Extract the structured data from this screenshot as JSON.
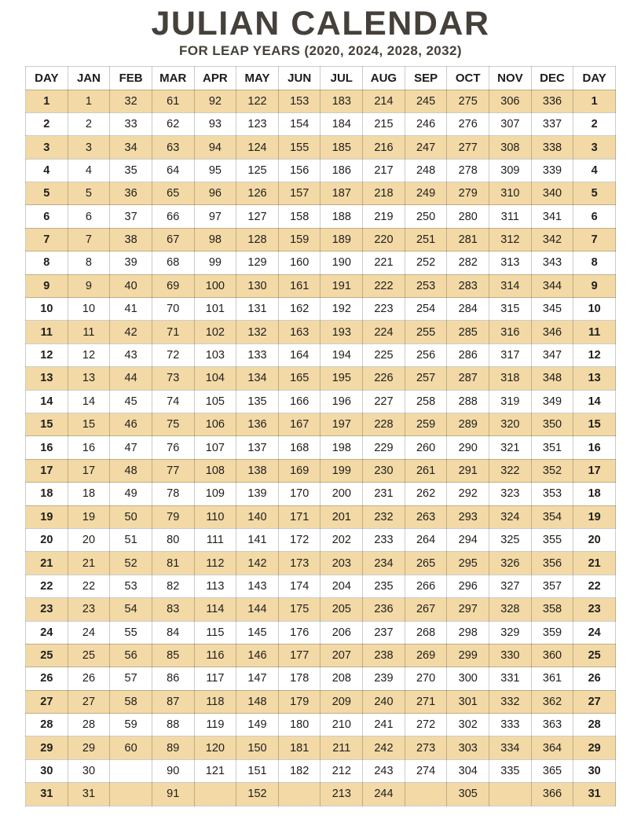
{
  "title": "JULIAN CALENDAR",
  "subtitle": "FOR LEAP YEARS (2020, 2024, 2028, 2032)",
  "colors": {
    "title_text": "#45403a",
    "stripe_row": "#f2d9a6",
    "grid_line": "#cccccc",
    "table_text": "#22201d"
  },
  "table": {
    "columns": [
      "DAY",
      "JAN",
      "FEB",
      "MAR",
      "APR",
      "MAY",
      "JUN",
      "JUL",
      "AUG",
      "SEP",
      "OCT",
      "NOV",
      "DEC",
      "DAY"
    ],
    "rows": [
      {
        "day": 1,
        "values": [
          1,
          32,
          61,
          92,
          122,
          153,
          183,
          214,
          245,
          275,
          306,
          336
        ]
      },
      {
        "day": 2,
        "values": [
          2,
          33,
          62,
          93,
          123,
          154,
          184,
          215,
          246,
          276,
          307,
          337
        ]
      },
      {
        "day": 3,
        "values": [
          3,
          34,
          63,
          94,
          124,
          155,
          185,
          216,
          247,
          277,
          308,
          338
        ]
      },
      {
        "day": 4,
        "values": [
          4,
          35,
          64,
          95,
          125,
          156,
          186,
          217,
          248,
          278,
          309,
          339
        ]
      },
      {
        "day": 5,
        "values": [
          5,
          36,
          65,
          96,
          126,
          157,
          187,
          218,
          249,
          279,
          310,
          340
        ]
      },
      {
        "day": 6,
        "values": [
          6,
          37,
          66,
          97,
          127,
          158,
          188,
          219,
          250,
          280,
          311,
          341
        ]
      },
      {
        "day": 7,
        "values": [
          7,
          38,
          67,
          98,
          128,
          159,
          189,
          220,
          251,
          281,
          312,
          342
        ]
      },
      {
        "day": 8,
        "values": [
          8,
          39,
          68,
          99,
          129,
          160,
          190,
          221,
          252,
          282,
          313,
          343
        ]
      },
      {
        "day": 9,
        "values": [
          9,
          40,
          69,
          100,
          130,
          161,
          191,
          222,
          253,
          283,
          314,
          344
        ]
      },
      {
        "day": 10,
        "values": [
          10,
          41,
          70,
          101,
          131,
          162,
          192,
          223,
          254,
          284,
          315,
          345
        ]
      },
      {
        "day": 11,
        "values": [
          11,
          42,
          71,
          102,
          132,
          163,
          193,
          224,
          255,
          285,
          316,
          346
        ]
      },
      {
        "day": 12,
        "values": [
          12,
          43,
          72,
          103,
          133,
          164,
          194,
          225,
          256,
          286,
          317,
          347
        ]
      },
      {
        "day": 13,
        "values": [
          13,
          44,
          73,
          104,
          134,
          165,
          195,
          226,
          257,
          287,
          318,
          348
        ]
      },
      {
        "day": 14,
        "values": [
          14,
          45,
          74,
          105,
          135,
          166,
          196,
          227,
          258,
          288,
          319,
          349
        ]
      },
      {
        "day": 15,
        "values": [
          15,
          46,
          75,
          106,
          136,
          167,
          197,
          228,
          259,
          289,
          320,
          350
        ]
      },
      {
        "day": 16,
        "values": [
          16,
          47,
          76,
          107,
          137,
          168,
          198,
          229,
          260,
          290,
          321,
          351
        ]
      },
      {
        "day": 17,
        "values": [
          17,
          48,
          77,
          108,
          138,
          169,
          199,
          230,
          261,
          291,
          322,
          352
        ]
      },
      {
        "day": 18,
        "values": [
          18,
          49,
          78,
          109,
          139,
          170,
          200,
          231,
          262,
          292,
          323,
          353
        ]
      },
      {
        "day": 19,
        "values": [
          19,
          50,
          79,
          110,
          140,
          171,
          201,
          232,
          263,
          293,
          324,
          354
        ]
      },
      {
        "day": 20,
        "values": [
          20,
          51,
          80,
          111,
          141,
          172,
          202,
          233,
          264,
          294,
          325,
          355
        ]
      },
      {
        "day": 21,
        "values": [
          21,
          52,
          81,
          112,
          142,
          173,
          203,
          234,
          265,
          295,
          326,
          356
        ]
      },
      {
        "day": 22,
        "values": [
          22,
          53,
          82,
          113,
          143,
          174,
          204,
          235,
          266,
          296,
          327,
          357
        ]
      },
      {
        "day": 23,
        "values": [
          23,
          54,
          83,
          114,
          144,
          175,
          205,
          236,
          267,
          297,
          328,
          358
        ]
      },
      {
        "day": 24,
        "values": [
          24,
          55,
          84,
          115,
          145,
          176,
          206,
          237,
          268,
          298,
          329,
          359
        ]
      },
      {
        "day": 25,
        "values": [
          25,
          56,
          85,
          116,
          146,
          177,
          207,
          238,
          269,
          299,
          330,
          360
        ]
      },
      {
        "day": 26,
        "values": [
          26,
          57,
          86,
          117,
          147,
          178,
          208,
          239,
          270,
          300,
          331,
          361
        ]
      },
      {
        "day": 27,
        "values": [
          27,
          58,
          87,
          118,
          148,
          179,
          209,
          240,
          271,
          301,
          332,
          362
        ]
      },
      {
        "day": 28,
        "values": [
          28,
          59,
          88,
          119,
          149,
          180,
          210,
          241,
          272,
          302,
          333,
          363
        ]
      },
      {
        "day": 29,
        "values": [
          29,
          60,
          89,
          120,
          150,
          181,
          211,
          242,
          273,
          303,
          334,
          364
        ]
      },
      {
        "day": 30,
        "values": [
          30,
          null,
          90,
          121,
          151,
          182,
          212,
          243,
          274,
          304,
          335,
          365
        ]
      },
      {
        "day": 31,
        "values": [
          31,
          null,
          91,
          null,
          152,
          null,
          213,
          244,
          null,
          305,
          null,
          366
        ]
      }
    ]
  }
}
